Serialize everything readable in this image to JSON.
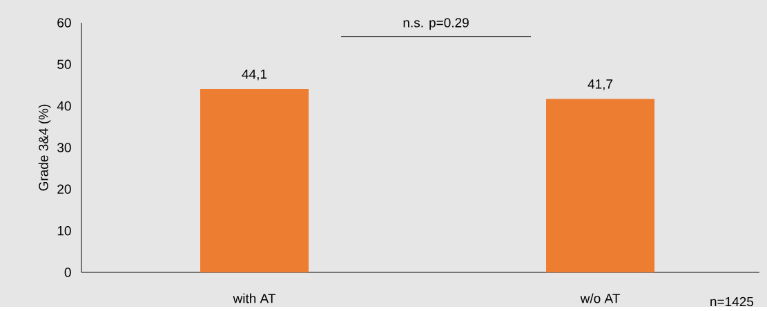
{
  "chart_data": {
    "type": "bar",
    "ylabel": "Grade 3&4 (%)",
    "categories": [
      "with AT",
      "w/o AT"
    ],
    "values": [
      44.1,
      41.7
    ],
    "value_labels": [
      "44,1",
      "41,7"
    ],
    "color": "#ed7d31",
    "ylim": [
      0,
      60
    ],
    "yticks": [
      0,
      10,
      20,
      30,
      40,
      50,
      60
    ],
    "annotations": [
      "n.s. p=0.29",
      "n=1425"
    ]
  }
}
